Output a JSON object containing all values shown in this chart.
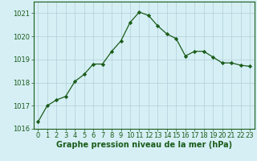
{
  "x": [
    0,
    1,
    2,
    3,
    4,
    5,
    6,
    7,
    8,
    9,
    10,
    11,
    12,
    13,
    14,
    15,
    16,
    17,
    18,
    19,
    20,
    21,
    22,
    23
  ],
  "y": [
    1016.3,
    1017.0,
    1017.25,
    1017.4,
    1018.05,
    1018.35,
    1018.8,
    1018.8,
    1019.35,
    1019.8,
    1020.6,
    1021.05,
    1020.9,
    1020.45,
    1020.1,
    1019.9,
    1019.15,
    1019.35,
    1019.35,
    1019.1,
    1018.85,
    1018.85,
    1018.75,
    1018.7
  ],
  "line_color": "#1a5c1a",
  "marker": "D",
  "marker_size": 2.2,
  "bg_color": "#d6eff5",
  "grid_color": "#b0cfd8",
  "xlabel": "Graphe pression niveau de la mer (hPa)",
  "xlabel_fontsize": 7,
  "tick_fontsize": 6,
  "ylim": [
    1016,
    1021.5
  ],
  "yticks": [
    1016,
    1017,
    1018,
    1019,
    1020,
    1021
  ],
  "xlim": [
    -0.5,
    23.5
  ],
  "xticks": [
    0,
    1,
    2,
    3,
    4,
    5,
    6,
    7,
    8,
    9,
    10,
    11,
    12,
    13,
    14,
    15,
    16,
    17,
    18,
    19,
    20,
    21,
    22,
    23
  ]
}
